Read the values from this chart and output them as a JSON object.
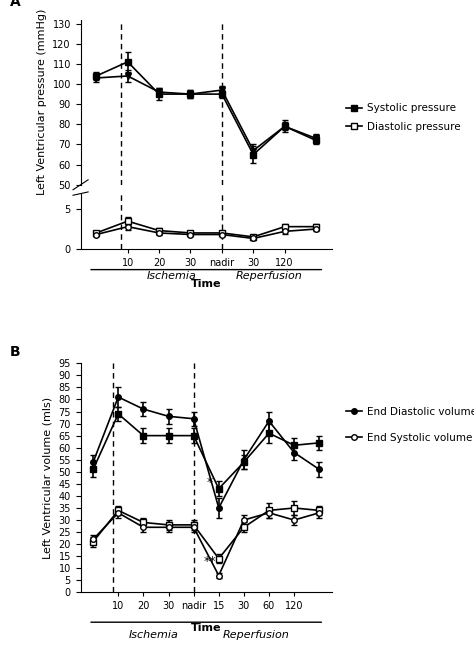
{
  "panel_A": {
    "title": "A",
    "ylabel": "Left Ventricular pressure (mmHg)",
    "xlabel": "Time",
    "xtick_labels": [
      "10",
      "20",
      "30",
      "nadir",
      "30",
      "120"
    ],
    "ischemia_label": "Ischemia",
    "reperfusion_label": "Reperfusion",
    "systolic_filled_square": {
      "y": [
        104,
        111,
        95,
        95,
        95,
        65,
        79,
        72
      ],
      "yerr": [
        2,
        5,
        3,
        2,
        2,
        4,
        3,
        2
      ],
      "label": "Systolic pressure"
    },
    "systolic_filled_triangle": {
      "y": [
        103,
        104,
        96,
        95,
        97,
        67,
        79,
        73
      ],
      "yerr": [
        2,
        3,
        2,
        2,
        2,
        3,
        2,
        2
      ],
      "label": ""
    },
    "diastolic_open_square": {
      "y": [
        2.0,
        3.5,
        2.3,
        2.0,
        2.0,
        1.5,
        2.8,
        2.8
      ],
      "yerr": [
        0.3,
        0.5,
        0.3,
        0.2,
        0.2,
        0.2,
        0.3,
        0.3
      ],
      "label": "Diastolic pressure"
    },
    "diastolic_open_circle": {
      "y": [
        1.8,
        2.8,
        2.0,
        1.8,
        1.8,
        1.3,
        2.2,
        2.5
      ],
      "yerr": [
        0.2,
        0.4,
        0.2,
        0.2,
        0.2,
        0.2,
        0.3,
        0.3
      ],
      "label": ""
    }
  },
  "panel_B": {
    "title": "B",
    "ylabel": "Left Ventricular volume (mls)",
    "xlabel": "Time",
    "xtick_labels": [
      "10",
      "20",
      "30",
      "nadir",
      "15",
      "30",
      "60",
      "120"
    ],
    "ischemia_label": "Ischemia",
    "reperfusion_label": "Reperfusion",
    "edv_filled_circle": {
      "y": [
        54,
        81,
        76,
        73,
        72,
        35,
        55,
        71,
        58,
        51
      ],
      "yerr": [
        3,
        4,
        3,
        3,
        3,
        4,
        4,
        4,
        3,
        3
      ],
      "label": "End Diastolic volume"
    },
    "edv_filled_square": {
      "y": [
        51,
        74,
        65,
        65,
        65,
        43,
        54,
        66,
        61,
        62
      ],
      "yerr": [
        3,
        3,
        3,
        3,
        3,
        3,
        3,
        4,
        3,
        3
      ],
      "label": ""
    },
    "esv_open_square": {
      "y": [
        21,
        34,
        29,
        28,
        28,
        14,
        27,
        34,
        35,
        34
      ],
      "yerr": [
        2,
        2,
        2,
        2,
        2,
        2,
        2,
        3,
        3,
        2
      ],
      "label": "End Systolic volume"
    },
    "esv_open_circle": {
      "y": [
        22,
        33,
        27,
        27,
        27,
        7,
        30,
        33,
        30,
        33
      ],
      "yerr": [
        2,
        2,
        2,
        2,
        2,
        1,
        2,
        2,
        2,
        2
      ],
      "label": ""
    }
  },
  "background_color": "#ffffff",
  "fontsize_label": 8,
  "fontsize_tick": 7,
  "fontsize_title": 10,
  "fontsize_legend": 7.5,
  "fontsize_annotation": 9
}
